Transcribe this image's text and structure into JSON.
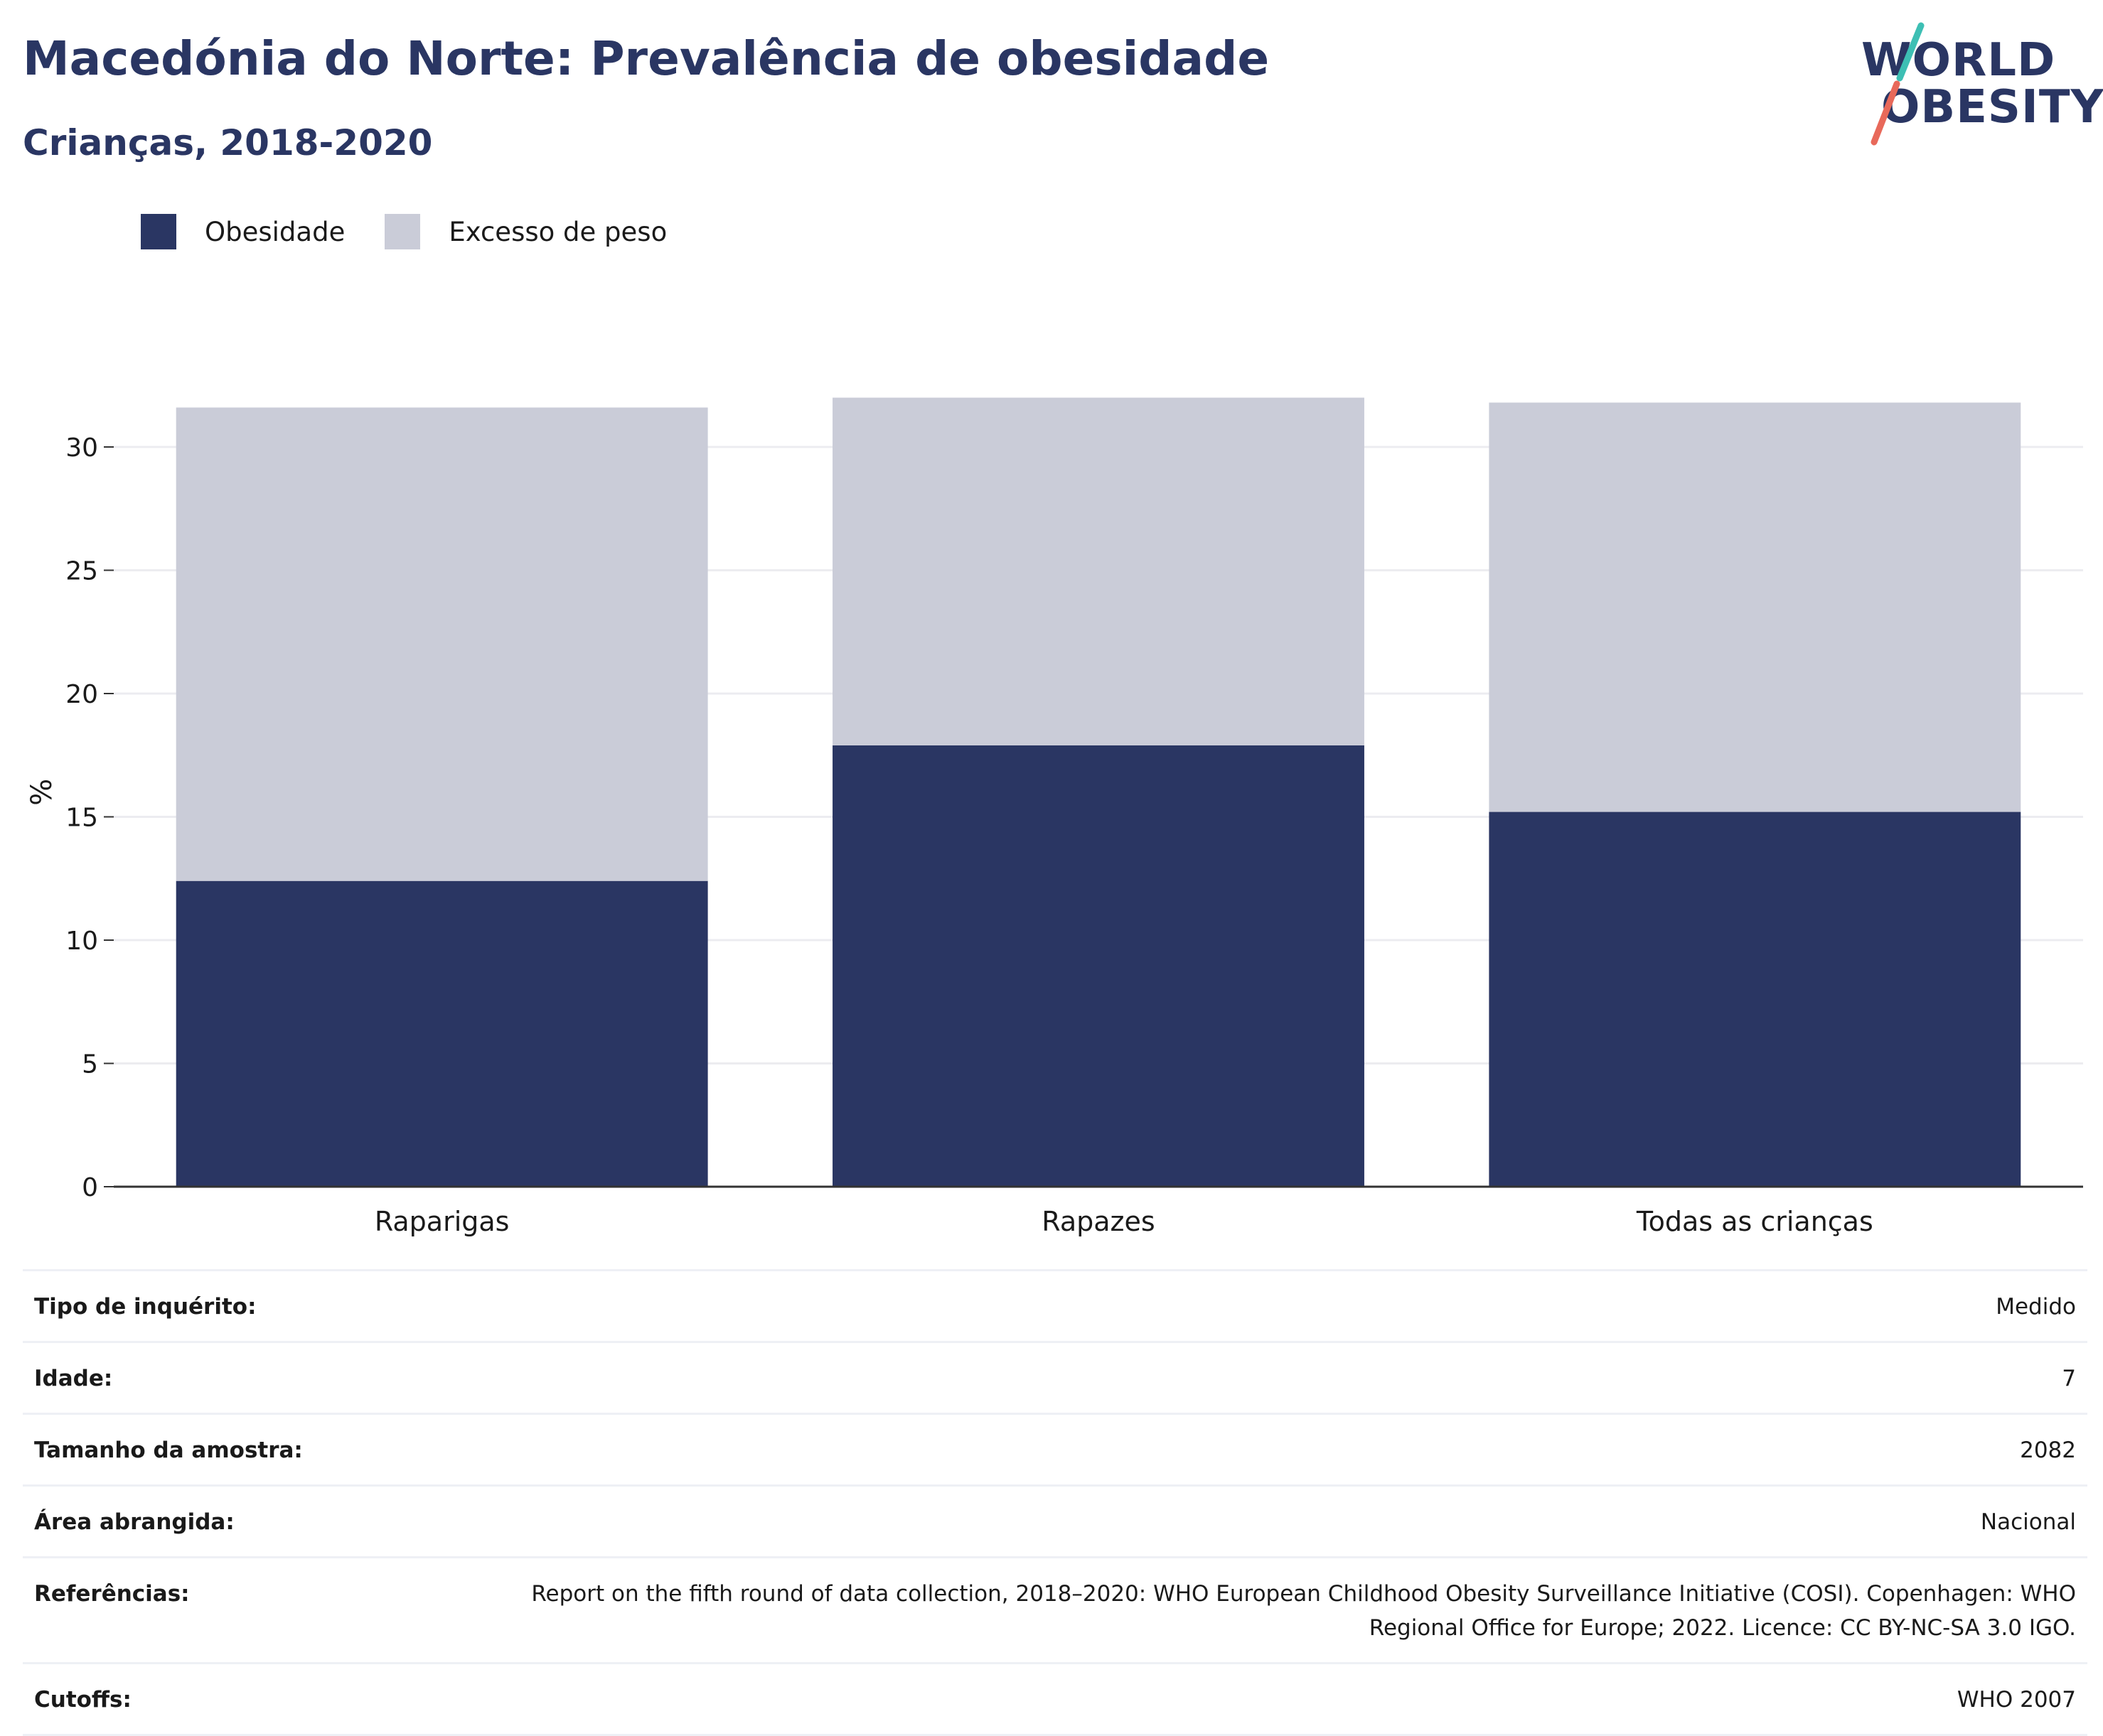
{
  "header": {
    "title": "Macedónia do Norte: Prevalência de obesidade",
    "subtitle": "Crianças, 2018-2020"
  },
  "logo": {
    "line1": "WORLD",
    "line2": "OBESITY",
    "colors": {
      "text": "#2a3663",
      "slash_top": "#3dbfb4",
      "slash_bottom": "#e8695a"
    }
  },
  "chart_data": {
    "type": "bar",
    "stacked": true,
    "categories": [
      "Raparigas",
      "Rapazes",
      "Todas as crianças"
    ],
    "series": [
      {
        "name": "Obesidade",
        "color": "#2a3663",
        "values": [
          12.4,
          17.9,
          15.2
        ]
      },
      {
        "name": "Excesso de peso",
        "color": "#caccd8",
        "values": [
          19.2,
          14.1,
          16.6
        ]
      }
    ],
    "ylabel": "%",
    "ylim": [
      0,
      32
    ],
    "yticks": [
      0,
      5,
      10,
      15,
      20,
      25,
      30
    ],
    "grid": true,
    "legend": "top-left"
  },
  "meta": {
    "rows": [
      {
        "label": "Tipo de inquérito:",
        "value": "Medido"
      },
      {
        "label": "Idade:",
        "value": "7"
      },
      {
        "label": "Tamanho da amostra:",
        "value": "2082"
      },
      {
        "label": "Área abrangida:",
        "value": "Nacional"
      },
      {
        "label": "Referências:",
        "value": "Report on the fifth round of data collection, 2018–2020: WHO European Childhood Obesity Surveillance Initiative (COSI). Copenhagen: WHO Regional Office for Europe; 2022. Licence: CC BY-NC-SA 3.0 IGO."
      },
      {
        "label": "Cutoffs:",
        "value": "WHO 2007"
      }
    ]
  }
}
